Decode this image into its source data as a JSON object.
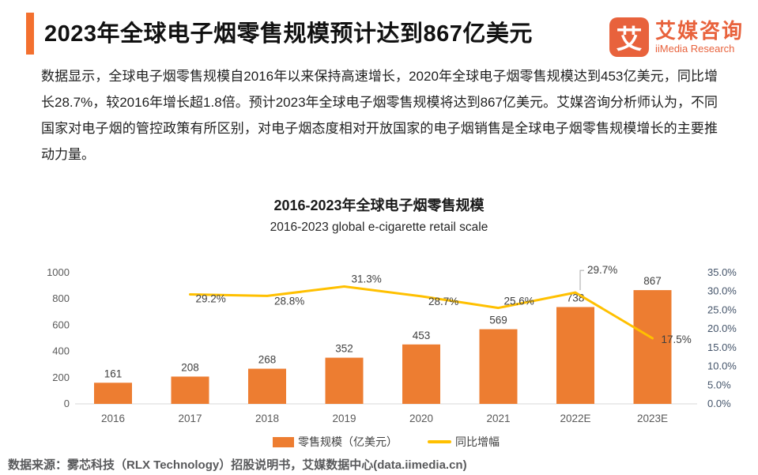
{
  "header": {
    "title": "2023年全球电子烟零售规模预计达到867亿美元",
    "logo": {
      "mark": "艾",
      "name_cn": "艾媒咨询",
      "name_en": "iiMedia Research"
    }
  },
  "intro": {
    "text": "数据显示，全球电子烟零售规模自2016年以来保持高速增长，2020年全球电子烟零售规模达到453亿美元，同比增长28.7%，较2016年增长超1.8倍。预计2023年全球电子烟零售规模将达到867亿美元。艾媒咨询分析师认为，不同国家对电子烟的管控政策有所区别，对电子烟态度相对开放国家的电子烟销售是全球电子烟零售规模增长的主要推动力量。"
  },
  "chart_data": {
    "type": "bar",
    "combo": "bar + line (dual axis)",
    "title": "2016-2023年全球电子烟零售规模",
    "subtitle": "2016-2023 global e-cigarette retail scale",
    "categories": [
      "2016",
      "2017",
      "2018",
      "2019",
      "2020",
      "2021",
      "2022E",
      "2023E"
    ],
    "series": [
      {
        "name": "零售规模（亿美元）",
        "type": "bar",
        "axis": "left",
        "color": "#ED7D31",
        "values": [
          161,
          208,
          268,
          352,
          453,
          569,
          738,
          867
        ]
      },
      {
        "name": "同比增幅",
        "type": "line",
        "axis": "right",
        "color": "#FFC000",
        "unit": "%",
        "values": [
          null,
          29.2,
          28.8,
          31.3,
          28.7,
          25.6,
          29.7,
          17.5
        ]
      }
    ],
    "left_axis": {
      "min": 0,
      "max": 1000,
      "step": 200,
      "ticks": [
        "0",
        "200",
        "400",
        "600",
        "800",
        "1000"
      ]
    },
    "right_axis": {
      "min": 0,
      "max": 35,
      "step": 5,
      "ticks": [
        "0.0%",
        "5.0%",
        "10.0%",
        "15.0%",
        "20.0%",
        "25.0%",
        "30.0%",
        "35.0%"
      ]
    },
    "grid": false,
    "legend_position": "bottom"
  },
  "footer": {
    "source": "数据来源：雾芯科技（RLX Technology）招股说明书，艾媒数据中心(data.iimedia.cn)"
  },
  "colors": {
    "accent": "#F3702F",
    "logo": "#E8623C",
    "bar": "#ED7D31",
    "line": "#FFC000",
    "left_axis_text": "#595959",
    "right_axis_text": "#44546A",
    "data_label_text": "#404040",
    "baseline": "#D9D9D9",
    "source_text": "#58595B",
    "callout_connector": "#A6A6A6"
  }
}
